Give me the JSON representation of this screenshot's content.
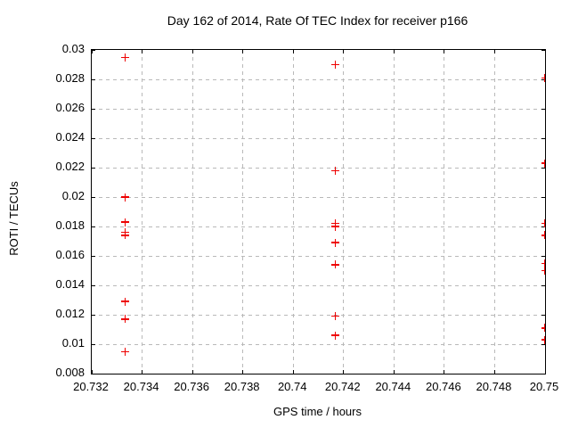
{
  "chart_data": {
    "type": "scatter",
    "title": "Day 162 of 2014, Rate Of TEC Index for receiver p166",
    "xlabel": "GPS time / hours",
    "ylabel": "ROTI / TECUs",
    "xlim": [
      20.732,
      20.75
    ],
    "ylim": [
      0.008,
      0.03
    ],
    "xticks": [
      20.732,
      20.734,
      20.736,
      20.738,
      20.74,
      20.742,
      20.744,
      20.746,
      20.748,
      20.75
    ],
    "xtick_labels": [
      "20.732",
      "20.734",
      "20.736",
      "20.738",
      "20.74",
      "20.742",
      "20.744",
      "20.746",
      "20.748",
      "20.75"
    ],
    "yticks": [
      0.008,
      0.01,
      0.012,
      0.014,
      0.016,
      0.018,
      0.02,
      0.022,
      0.024,
      0.026,
      0.028,
      0.03
    ],
    "ytick_labels": [
      "0.008",
      "0.01",
      "0.012",
      "0.014",
      "0.016",
      "0.018",
      "0.02",
      "0.022",
      "0.024",
      "0.026",
      "0.028",
      "0.03"
    ],
    "grid": true,
    "legend": "none",
    "marker": "plus",
    "colors": {
      "marker": "#ee0000",
      "grid": "#b9b9b9",
      "axis": "#000000",
      "background": "#ffffff"
    },
    "series": [
      {
        "name": "ROTI",
        "points": [
          [
            20.73333,
            0.0295
          ],
          [
            20.73333,
            0.02
          ],
          [
            20.73333,
            0.0183
          ],
          [
            20.73333,
            0.0176
          ],
          [
            20.73333,
            0.0174
          ],
          [
            20.73333,
            0.0129
          ],
          [
            20.73333,
            0.0117
          ],
          [
            20.73333,
            0.0095
          ],
          [
            20.74167,
            0.029
          ],
          [
            20.74167,
            0.0218
          ],
          [
            20.74167,
            0.0182
          ],
          [
            20.74167,
            0.018
          ],
          [
            20.74167,
            0.0169
          ],
          [
            20.74167,
            0.0154
          ],
          [
            20.74167,
            0.0119
          ],
          [
            20.74167,
            0.0106
          ],
          [
            20.75,
            0.0281
          ],
          [
            20.75,
            0.0223
          ],
          [
            20.75,
            0.0182
          ],
          [
            20.75,
            0.0174
          ],
          [
            20.75,
            0.0155
          ],
          [
            20.75,
            0.015
          ],
          [
            20.75,
            0.0111
          ],
          [
            20.75,
            0.0103
          ]
        ]
      }
    ]
  }
}
